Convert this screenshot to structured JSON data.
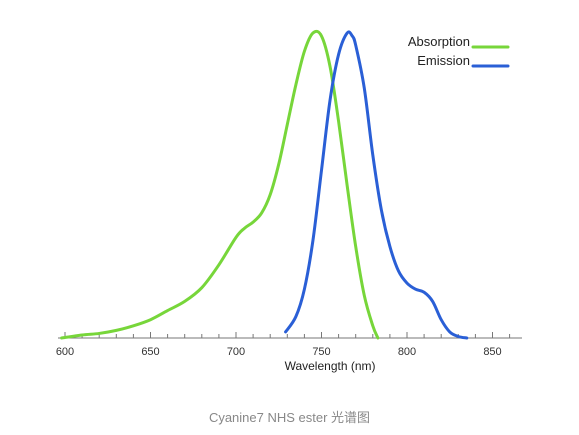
{
  "chart_data": {
    "type": "line",
    "xlabel": "Wavelength (nm)",
    "ylabel": "",
    "xlim": [
      600,
      865
    ],
    "ylim": [
      0,
      1
    ],
    "xticks": [
      "600",
      "650",
      "700",
      "750",
      "800",
      "850"
    ],
    "grid": false,
    "legend_position": "top-right",
    "series": [
      {
        "name": "Absorption",
        "color": "#77d63a",
        "x": [
          598,
          610,
          620,
          630,
          640,
          650,
          660,
          670,
          680,
          690,
          700,
          705,
          710,
          715,
          720,
          725,
          730,
          735,
          740,
          745,
          750,
          755,
          760,
          765,
          770,
          775,
          780,
          783
        ],
        "y": [
          0.0,
          0.01,
          0.015,
          0.025,
          0.04,
          0.06,
          0.09,
          0.12,
          0.165,
          0.24,
          0.33,
          0.36,
          0.38,
          0.41,
          0.47,
          0.57,
          0.7,
          0.83,
          0.94,
          1.0,
          0.99,
          0.89,
          0.71,
          0.5,
          0.3,
          0.14,
          0.04,
          0.0
        ]
      },
      {
        "name": "Emission",
        "color": "#2a5fd6",
        "x": [
          729,
          735,
          740,
          745,
          750,
          755,
          760,
          765,
          768,
          770,
          775,
          780,
          785,
          790,
          795,
          800,
          805,
          810,
          815,
          820,
          825,
          830,
          835
        ],
        "y": [
          0.02,
          0.07,
          0.16,
          0.32,
          0.55,
          0.78,
          0.93,
          1.0,
          0.99,
          0.96,
          0.82,
          0.6,
          0.42,
          0.3,
          0.22,
          0.18,
          0.16,
          0.15,
          0.12,
          0.06,
          0.02,
          0.005,
          0.0
        ]
      }
    ]
  },
  "caption": "Cyanine7 NHS ester 光谱图"
}
